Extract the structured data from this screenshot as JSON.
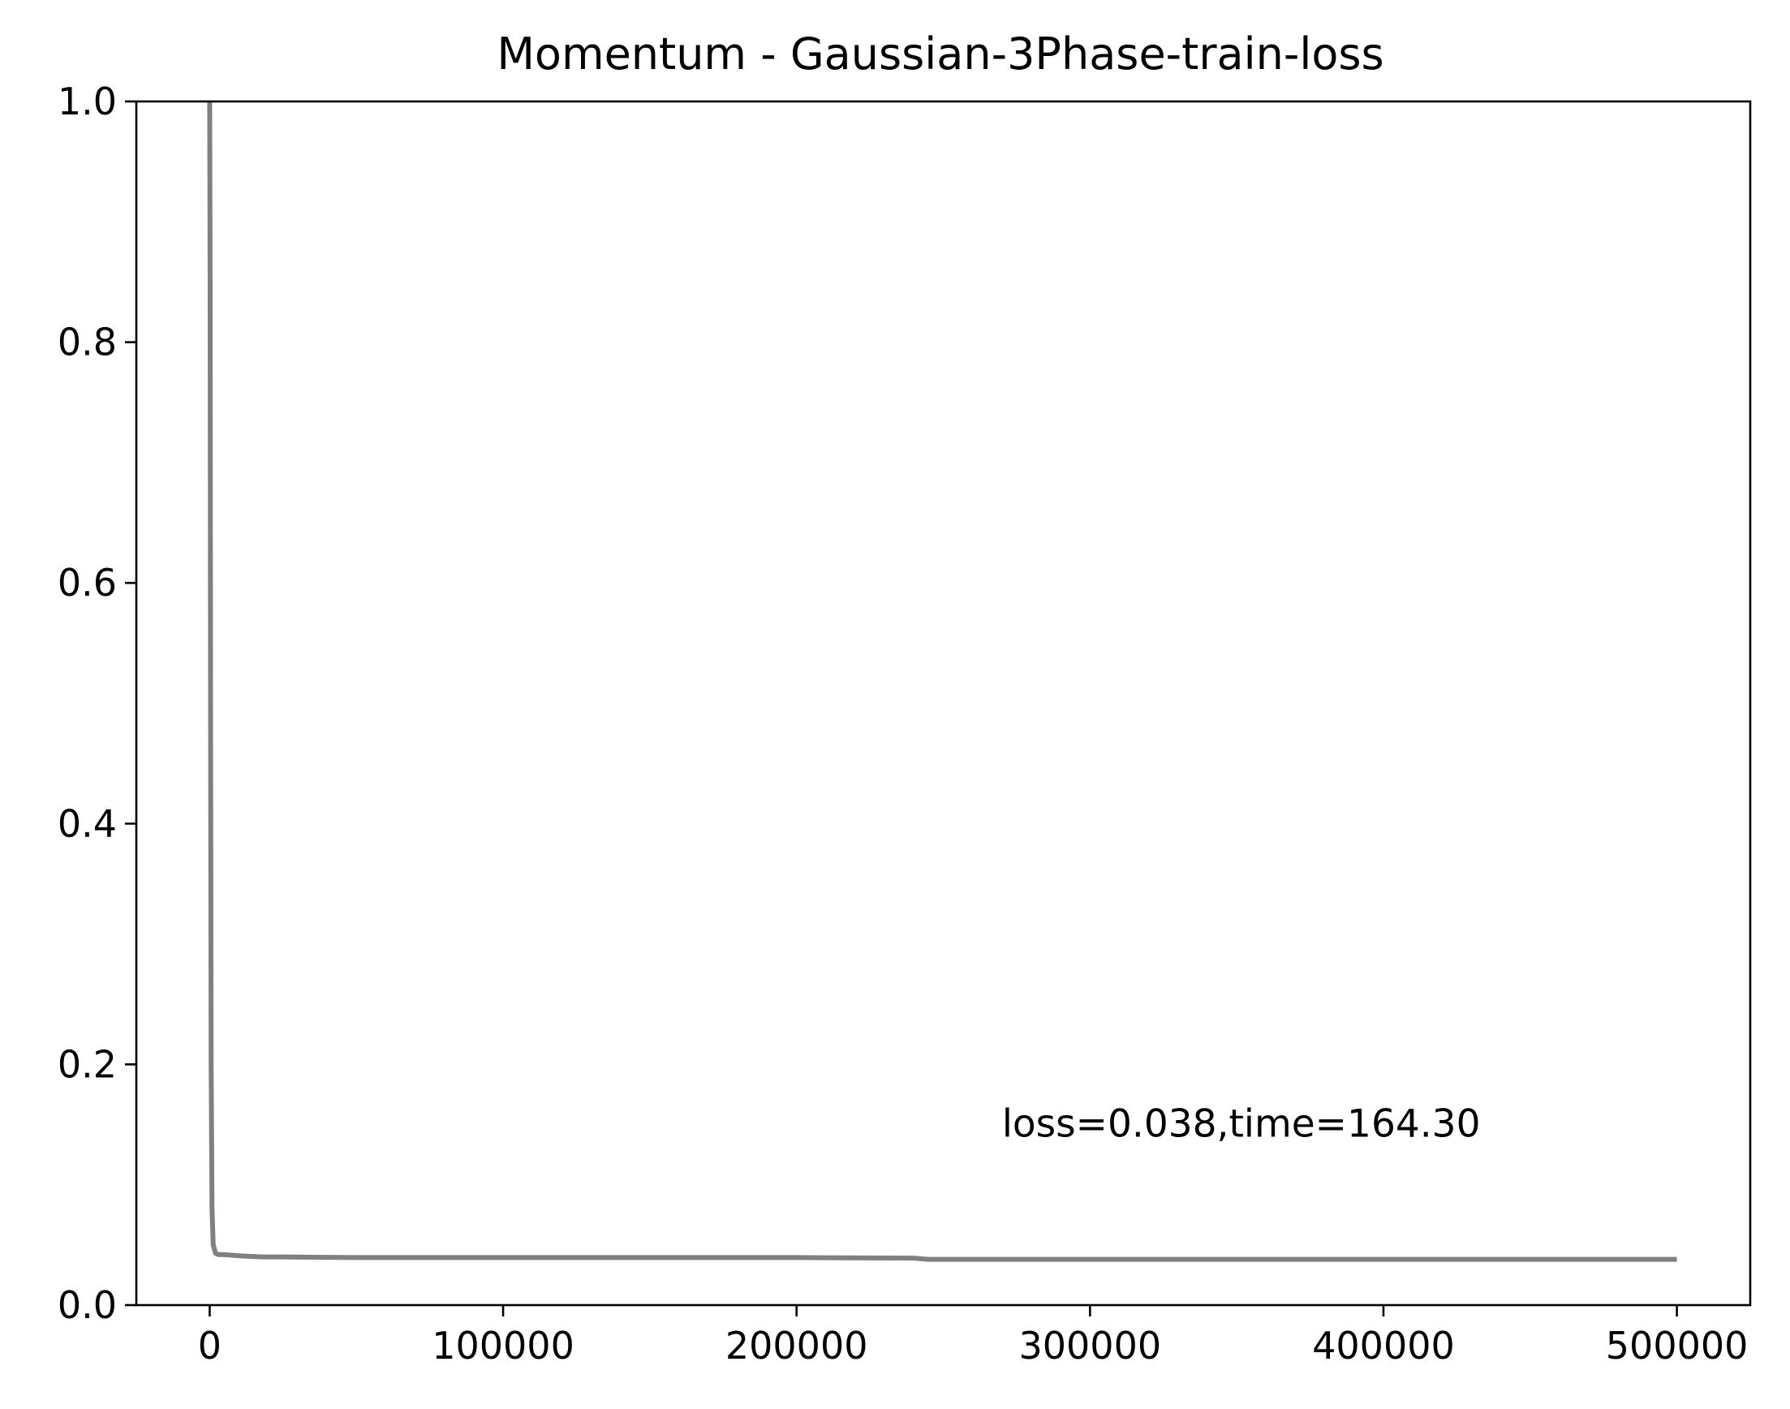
{
  "chart_data": {
    "type": "line",
    "title": "Momentum - Gaussian-3Phase-train-loss",
    "xlabel": "",
    "ylabel": "",
    "xlim": [
      -25000,
      525000
    ],
    "ylim": [
      0.0,
      1.0
    ],
    "xticks": [
      0,
      100000,
      200000,
      300000,
      400000,
      500000
    ],
    "xtick_labels": [
      "0",
      "100000",
      "200000",
      "300000",
      "400000",
      "500000"
    ],
    "yticks": [
      0.0,
      0.2,
      0.4,
      0.6,
      0.8,
      1.0
    ],
    "ytick_labels": [
      "0.0",
      "0.2",
      "0.4",
      "0.6",
      "0.8",
      "1.0"
    ],
    "grid": false,
    "annotation": {
      "text": "loss=0.038,time=164.30",
      "x": 270000,
      "y": 0.14
    },
    "series": [
      {
        "color": "#808080",
        "x": [
          0,
          150,
          300,
          500,
          800,
          1200,
          2000,
          3000,
          5000,
          10000,
          18000,
          25000,
          50000,
          100000,
          150000,
          200000,
          240000,
          245000,
          300000,
          400000,
          500000
        ],
        "y": [
          1.0,
          0.85,
          0.5,
          0.2,
          0.08,
          0.05,
          0.043,
          0.042,
          0.042,
          0.041,
          0.04,
          0.04,
          0.0395,
          0.0395,
          0.0395,
          0.0395,
          0.039,
          0.038,
          0.038,
          0.038,
          0.038
        ]
      }
    ]
  }
}
